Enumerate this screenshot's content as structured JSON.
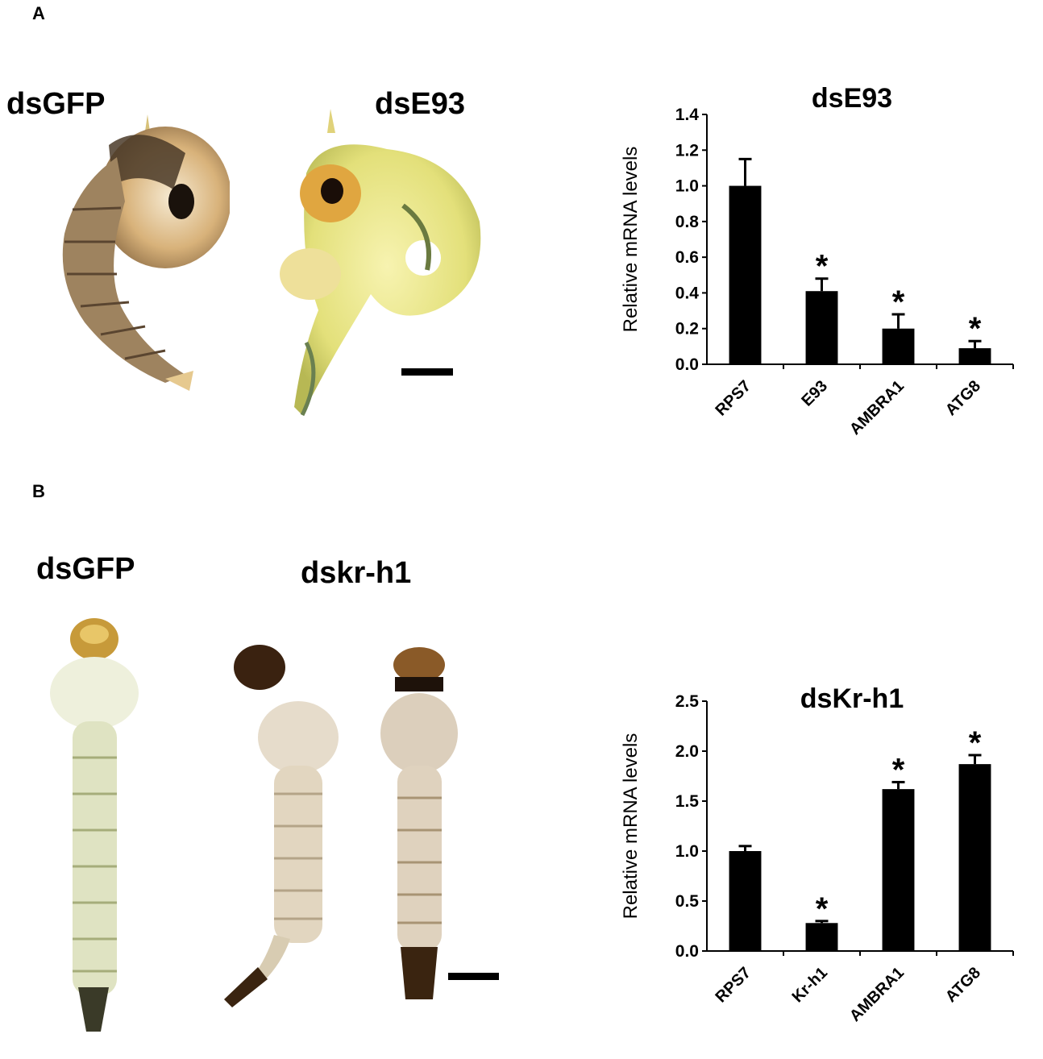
{
  "panels": {
    "a": {
      "letter": "A",
      "specimen_labels": [
        "dsGFP",
        "dsE93"
      ],
      "specimen_images": [
        "pupa-dsgfp",
        "pupa-dse93"
      ]
    },
    "b": {
      "letter": "B",
      "specimen_labels": [
        "dsGFP",
        "dskr-h1"
      ],
      "specimen_images": [
        "larva-dsgfp",
        "larva-dskrh1-1",
        "larva-dskrh1-2"
      ]
    }
  },
  "colors": {
    "bar": "#000000",
    "axis": "#000000"
  },
  "chart_data": [
    {
      "type": "bar",
      "title": "dsE93",
      "xlabel": "",
      "ylabel": "Relative mRNA levels",
      "categories": [
        "RPS7",
        "E93",
        "AMBRA1",
        "ATG8"
      ],
      "values": [
        1.0,
        0.41,
        0.2,
        0.09
      ],
      "errors": [
        0.15,
        0.07,
        0.08,
        0.04
      ],
      "significance": [
        "",
        "*",
        "*",
        "*"
      ],
      "ylim": [
        0,
        1.4
      ],
      "yticks": [
        "0.0",
        "0.2",
        "0.4",
        "0.6",
        "0.8",
        "1.0",
        "1.2",
        "1.4"
      ],
      "grid": false
    },
    {
      "type": "bar",
      "title": "dsKr-h1",
      "xlabel": "",
      "ylabel": "Relative mRNA levels",
      "categories": [
        "RPS7",
        "Kr-h1",
        "AMBRA1",
        "ATG8"
      ],
      "values": [
        1.0,
        0.28,
        1.62,
        1.87
      ],
      "errors": [
        0.05,
        0.02,
        0.07,
        0.09
      ],
      "significance": [
        "",
        "*",
        "*",
        "*"
      ],
      "ylim": [
        0,
        2.5
      ],
      "yticks": [
        "0.0",
        "0.5",
        "1.0",
        "1.5",
        "2.0",
        "2.5"
      ],
      "grid": false
    }
  ]
}
